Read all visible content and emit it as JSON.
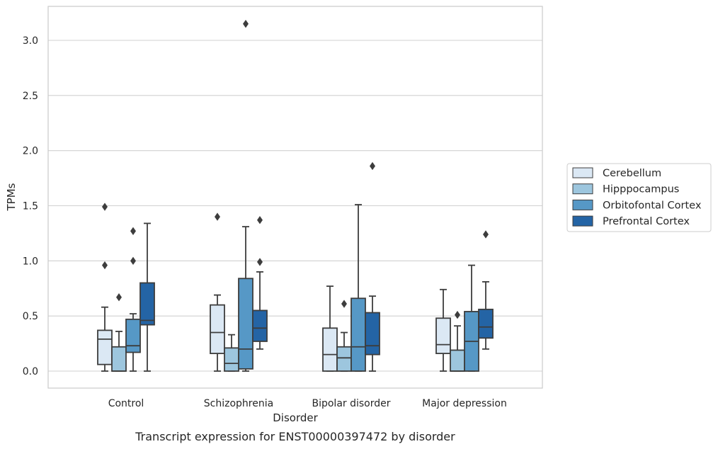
{
  "chart_data": {
    "type": "box",
    "xlabel": "Disorder",
    "ylabel": "TPMs",
    "caption": "Transcript expression for ENST00000397472 by disorder",
    "ylim": [
      -0.15,
      3.3
    ],
    "yticks": [
      "0.0",
      "0.5",
      "1.0",
      "1.5",
      "2.0",
      "2.5",
      "3.0"
    ],
    "grid": "horizontal",
    "legend_position": "right",
    "categories": [
      "Control",
      "Schizophrenia",
      "Bipolar disorder",
      "Major depression"
    ],
    "series": [
      {
        "name": "Cerebellum",
        "color": "#dbe8f4",
        "boxes": [
          {
            "whisker_low": 0.0,
            "q1": 0.06,
            "median": 0.29,
            "q3": 0.37,
            "whisker_high": 0.58,
            "outliers": [
              1.49,
              0.96
            ]
          },
          {
            "whisker_low": 0.0,
            "q1": 0.16,
            "median": 0.35,
            "q3": 0.6,
            "whisker_high": 0.69,
            "outliers": [
              1.4
            ]
          },
          {
            "whisker_low": 0.0,
            "q1": 0.0,
            "median": 0.15,
            "q3": 0.39,
            "whisker_high": 0.77,
            "outliers": []
          },
          {
            "whisker_low": 0.0,
            "q1": 0.16,
            "median": 0.24,
            "q3": 0.48,
            "whisker_high": 0.74,
            "outliers": []
          }
        ]
      },
      {
        "name": "Hipppocampus",
        "color": "#9dc6de",
        "boxes": [
          {
            "whisker_low": 0.0,
            "q1": 0.0,
            "median": 0.0,
            "q3": 0.22,
            "whisker_high": 0.36,
            "outliers": [
              0.67
            ]
          },
          {
            "whisker_low": 0.0,
            "q1": 0.0,
            "median": 0.07,
            "q3": 0.21,
            "whisker_high": 0.33,
            "outliers": []
          },
          {
            "whisker_low": 0.0,
            "q1": 0.0,
            "median": 0.12,
            "q3": 0.22,
            "whisker_high": 0.35,
            "outliers": [
              0.61
            ]
          },
          {
            "whisker_low": 0.0,
            "q1": 0.0,
            "median": 0.0,
            "q3": 0.19,
            "whisker_high": 0.41,
            "outliers": [
              0.51
            ]
          }
        ]
      },
      {
        "name": "Orbitofontal Cortex",
        "color": "#5698c6",
        "boxes": [
          {
            "whisker_low": 0.0,
            "q1": 0.17,
            "median": 0.23,
            "q3": 0.47,
            "whisker_high": 0.52,
            "outliers": [
              1.27,
              1.0
            ]
          },
          {
            "whisker_low": 0.0,
            "q1": 0.02,
            "median": 0.2,
            "q3": 0.84,
            "whisker_high": 1.31,
            "outliers": [
              3.15
            ]
          },
          {
            "whisker_low": 0.0,
            "q1": 0.0,
            "median": 0.22,
            "q3": 0.66,
            "whisker_high": 1.51,
            "outliers": []
          },
          {
            "whisker_low": 0.0,
            "q1": 0.0,
            "median": 0.27,
            "q3": 0.54,
            "whisker_high": 0.96,
            "outliers": []
          }
        ]
      },
      {
        "name": "Prefrontal Cortex",
        "color": "#2464a5",
        "boxes": [
          {
            "whisker_low": 0.0,
            "q1": 0.42,
            "median": 0.46,
            "q3": 0.8,
            "whisker_high": 1.34,
            "outliers": []
          },
          {
            "whisker_low": 0.2,
            "q1": 0.27,
            "median": 0.39,
            "q3": 0.55,
            "whisker_high": 0.9,
            "outliers": [
              1.37,
              0.99
            ]
          },
          {
            "whisker_low": 0.0,
            "q1": 0.15,
            "median": 0.23,
            "q3": 0.53,
            "whisker_high": 0.68,
            "outliers": [
              1.86
            ]
          },
          {
            "whisker_low": 0.2,
            "q1": 0.3,
            "median": 0.4,
            "q3": 0.56,
            "whisker_high": 0.81,
            "outliers": [
              1.24
            ]
          }
        ]
      }
    ]
  }
}
